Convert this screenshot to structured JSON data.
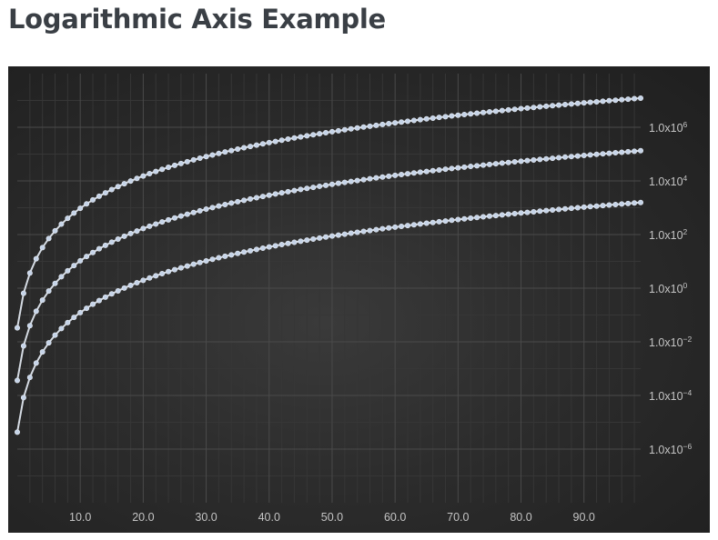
{
  "page": {
    "title": "Logarithmic Axis Example"
  },
  "chart_data": {
    "type": "scatter",
    "title": "",
    "xlabel": "",
    "ylabel": "",
    "x_scale": "linear",
    "y_scale": "log10",
    "xlim": [
      0,
      99
    ],
    "ylim": [
      1e-08,
      100000000.0
    ],
    "x_ticks": [
      "10.0",
      "20.0",
      "30.0",
      "40.0",
      "50.0",
      "60.0",
      "70.0",
      "80.0",
      "90.0"
    ],
    "y_ticks": [
      {
        "value": 1000000.0,
        "mantissa": "1.0x10",
        "exponent": "6"
      },
      {
        "value": 10000.0,
        "mantissa": "1.0x10",
        "exponent": "4"
      },
      {
        "value": 100.0,
        "mantissa": "1.0x10",
        "exponent": "2"
      },
      {
        "value": 1.0,
        "mantissa": "1.0x10",
        "exponent": "0"
      },
      {
        "value": 0.01,
        "mantissa": "1.0x10",
        "exponent": "−2"
      },
      {
        "value": 0.0001,
        "mantissa": "1.0x10",
        "exponent": "−4"
      },
      {
        "value": 1e-06,
        "mantissa": "1.0x10",
        "exponent": "−6"
      }
    ],
    "grid": true,
    "legend": "none",
    "axis_position": {
      "y": "right",
      "x": "bottom"
    },
    "colors": {
      "background": "#2b2b2b",
      "series": "#c6d4e8",
      "series_outline": "#e8eef7",
      "grid_major": "#4a4a4a",
      "grid_minor": "#363636",
      "tick_label": "#c4c4c4"
    },
    "series_generation": "y = 10^(a + b*ln(x+1)), x = 0..99 step 1",
    "series": [
      {
        "x_start": 0,
        "x_end": 99,
        "x_step": 1,
        "a": -1.48,
        "b": 1.86
      },
      {
        "x_start": 0,
        "x_end": 99,
        "x_step": 1,
        "a": -3.44,
        "b": 1.86
      },
      {
        "x_start": 0,
        "x_end": 99,
        "x_step": 1,
        "a": -5.37,
        "b": 1.86
      }
    ]
  }
}
